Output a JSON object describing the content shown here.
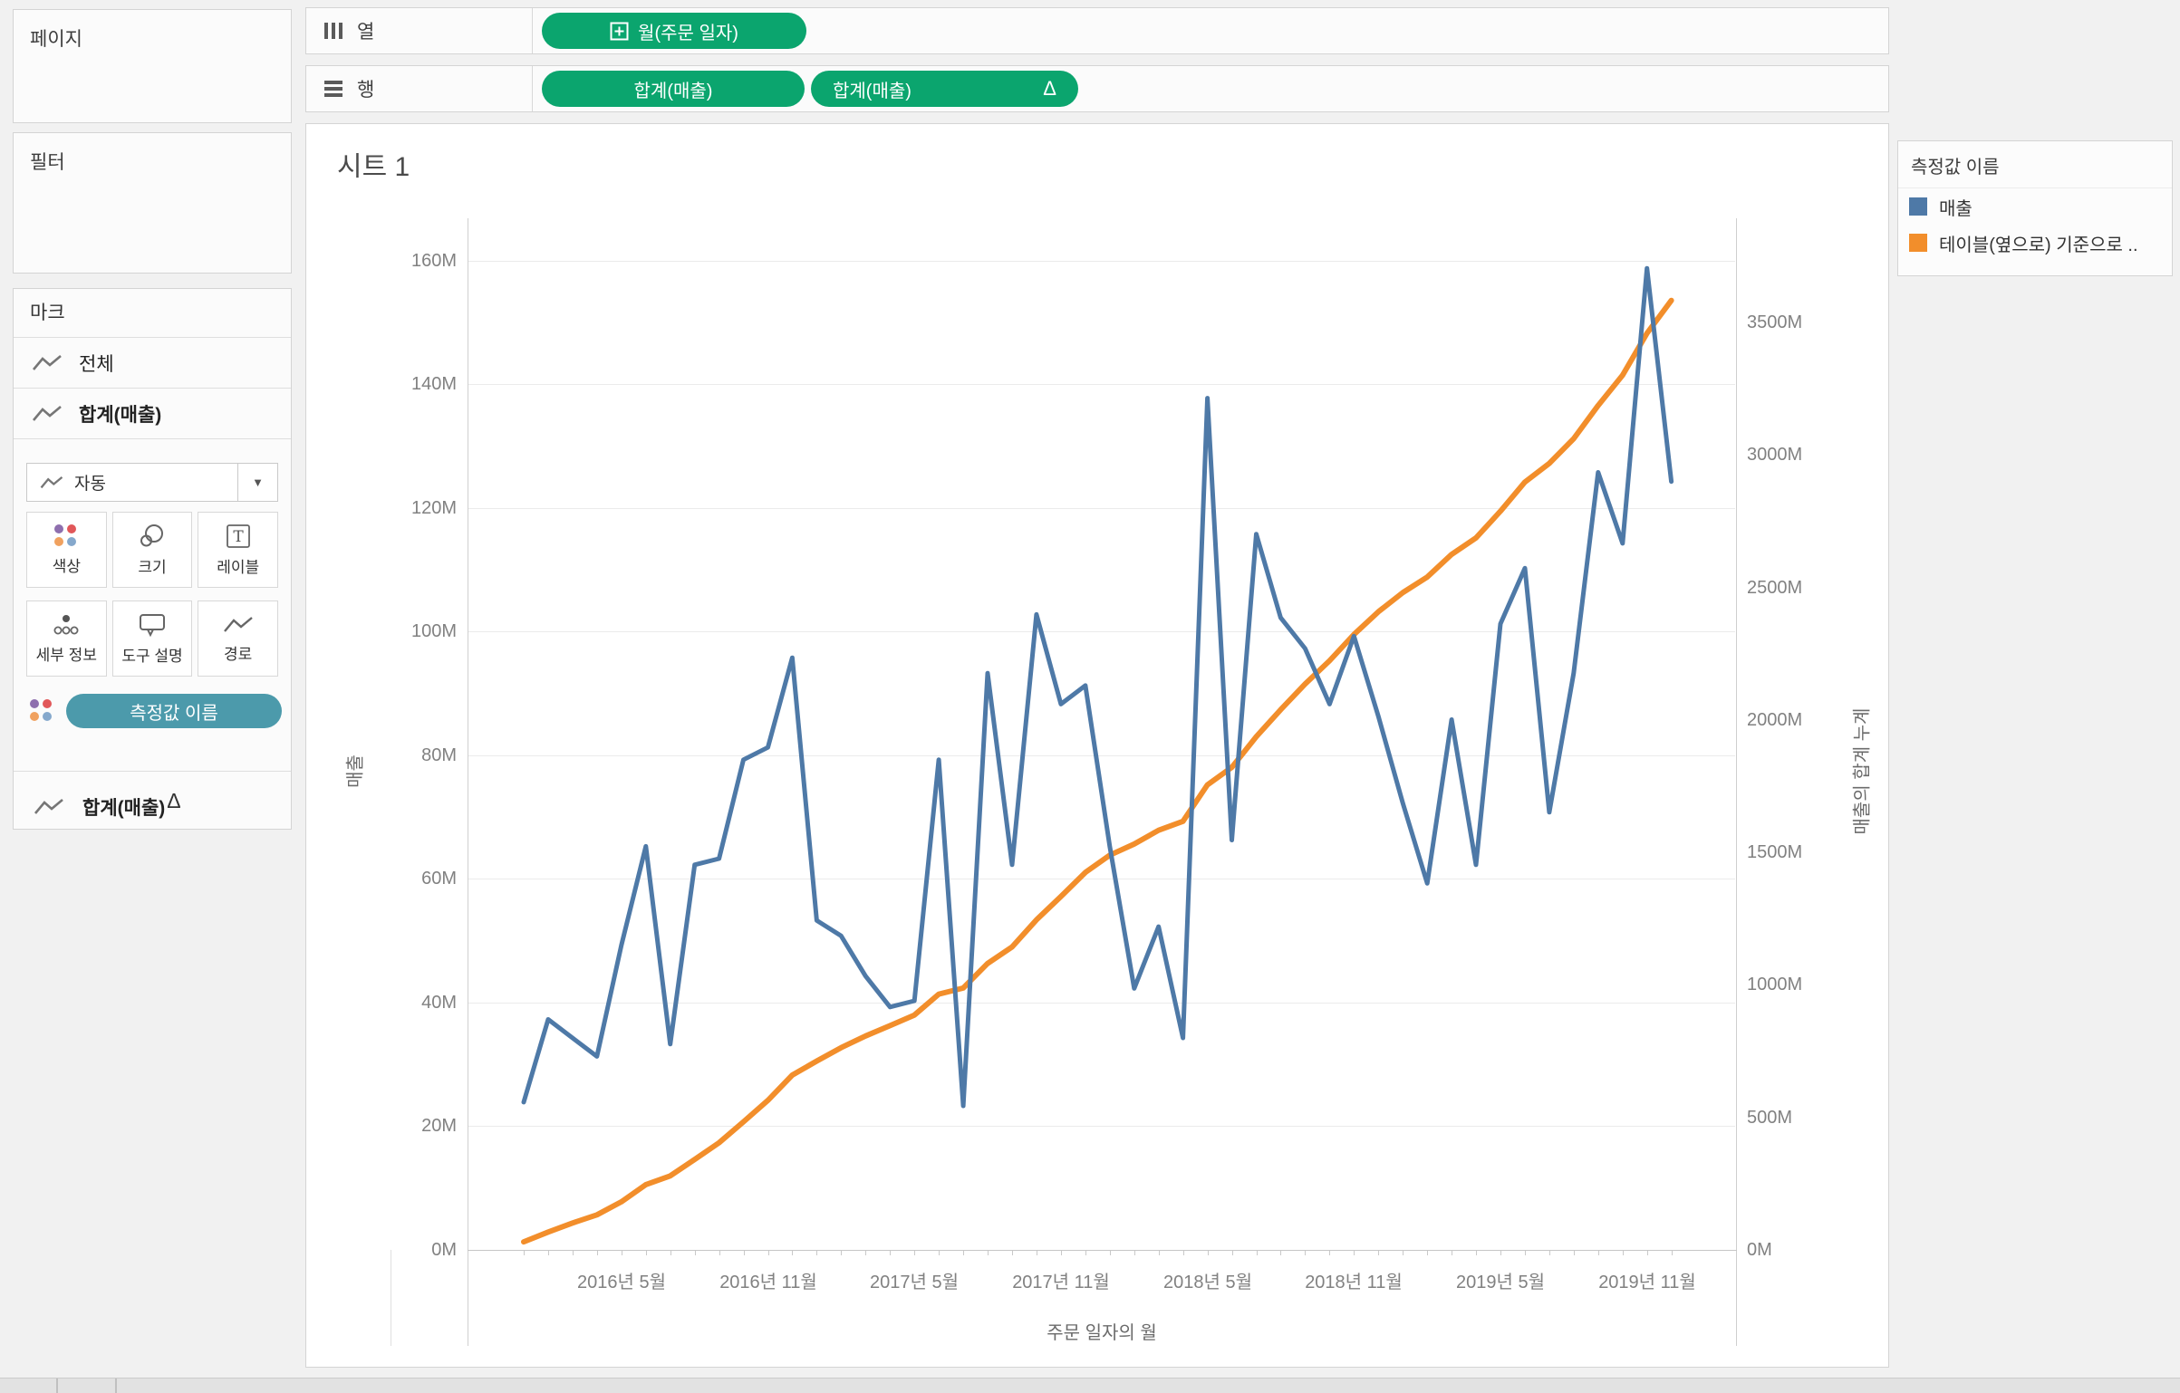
{
  "colors": {
    "pill_green": "#0ba56e",
    "teal_pill": "#4c9aab",
    "series_blue": "#4e79a7",
    "series_orange": "#f28e2b"
  },
  "left_panel": {
    "pages_title": "페이지",
    "filters_title": "필터",
    "marks": {
      "title": "마크",
      "items": [
        {
          "label": "전체"
        },
        {
          "label": "합계(매출)"
        }
      ],
      "dropdown_label": "자동",
      "buttons": [
        {
          "label": "색상"
        },
        {
          "label": "크기"
        },
        {
          "label": "레이블"
        },
        {
          "label": "세부 정보"
        },
        {
          "label": "도구 설명"
        },
        {
          "label": "경로"
        }
      ],
      "color_pill_label": "측정값 이름",
      "secondary": {
        "label": "합계(매출)",
        "delta": "Δ"
      }
    }
  },
  "shelves": {
    "columns": {
      "label": "열",
      "pill": "월(주문 일자)"
    },
    "rows": {
      "label": "행",
      "pill1": "합계(매출)",
      "pill2": "합계(매출)",
      "pill2_delta": "Δ"
    }
  },
  "sheet_title": "시트 1",
  "legend": {
    "title": "측정값 이름",
    "items": [
      {
        "label": "매출",
        "color": "#4e79a7"
      },
      {
        "label": "테이블(옆으로) 기준으로 ..",
        "color": "#f28e2b"
      }
    ]
  },
  "chart_data": {
    "type": "line",
    "title": "시트 1",
    "x": {
      "title": "주문 일자의 월",
      "start_month": "2016-01",
      "end_month": "2019-12",
      "tick_labels": [
        "2016년 5월",
        "2016년 11월",
        "2017년 5월",
        "2017년 11월",
        "2018년 5월",
        "2018년 11월",
        "2019년 5월",
        "2019년 11월"
      ]
    },
    "y_left": {
      "title": "매출",
      "unit": "M",
      "tick_labels": [
        "0M",
        "20M",
        "40M",
        "60M",
        "80M",
        "100M",
        "120M",
        "140M",
        "160M"
      ],
      "range": [
        0,
        160
      ]
    },
    "y_right": {
      "title": "매출의 합계 누계",
      "unit": "M",
      "tick_labels": [
        "0M",
        "500M",
        "1000M",
        "1500M",
        "2000M",
        "2500M",
        "3000M",
        "3500M"
      ],
      "range": [
        0,
        3890
      ]
    },
    "series": [
      {
        "name": "매출",
        "axis": "left",
        "color": "#4e79a7",
        "values": [
          23.6,
          37,
          34,
          31,
          49,
          65,
          33,
          62,
          63,
          79,
          81,
          95.5,
          53,
          50.5,
          44,
          39,
          40,
          79,
          23,
          93,
          62,
          102.5,
          88,
          91,
          65,
          42,
          52,
          34,
          137.5,
          66,
          115.5,
          102,
          97,
          88,
          99,
          86,
          72,
          59,
          85.5,
          62,
          101,
          110,
          70.5,
          93,
          125.5,
          114,
          158.5,
          124
        ]
      },
      {
        "name": "테이블(옆으로) 기준으로 계산된 매출의 합계 누계",
        "axis": "right",
        "color": "#f28e2b",
        "derived": "running_total_of_series_0"
      }
    ]
  }
}
